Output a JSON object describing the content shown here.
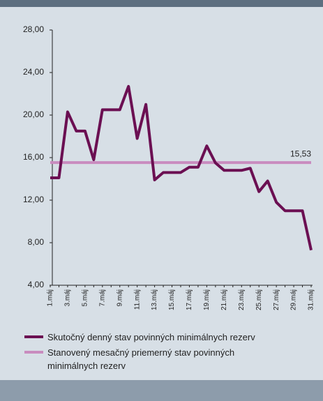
{
  "chart_data": {
    "type": "line",
    "categories": [
      "1.máj",
      null,
      "3.máj",
      null,
      "5.máj",
      null,
      "7.máj",
      null,
      "9.máj",
      null,
      "11.máj",
      null,
      "13.máj",
      null,
      "15.máj",
      null,
      "17.máj",
      null,
      "19.máj",
      null,
      "21.máj",
      null,
      "23.máj",
      null,
      "25.máj",
      null,
      "27.máj",
      null,
      "29.máj",
      null,
      "31.máj"
    ],
    "series": [
      {
        "name": "Skutočný denný stav povinných minimálnych rezerv",
        "color": "#6b0f52",
        "values": [
          14.1,
          14.1,
          20.3,
          18.5,
          18.5,
          15.8,
          20.5,
          20.5,
          20.5,
          22.7,
          17.8,
          21.0,
          13.9,
          14.6,
          14.6,
          14.6,
          15.1,
          15.1,
          17.1,
          15.5,
          14.8,
          14.8,
          14.8,
          15.0,
          12.8,
          13.8,
          11.8,
          11.0,
          11.0,
          11.0,
          7.3
        ]
      },
      {
        "name": "Stanovený mesačný priemerný stav povinných minimálnych rezerv",
        "color": "#c98cbf",
        "values": [
          15.53,
          15.53,
          15.53,
          15.53,
          15.53,
          15.53,
          15.53,
          15.53,
          15.53,
          15.53,
          15.53,
          15.53,
          15.53,
          15.53,
          15.53,
          15.53,
          15.53,
          15.53,
          15.53,
          15.53,
          15.53,
          15.53,
          15.53,
          15.53,
          15.53,
          15.53,
          15.53,
          15.53,
          15.53,
          15.53,
          15.53
        ],
        "value_labels": [
          null,
          null,
          null,
          null,
          null,
          null,
          null,
          null,
          null,
          null,
          null,
          null,
          null,
          null,
          null,
          null,
          null,
          null,
          null,
          null,
          null,
          null,
          null,
          null,
          null,
          null,
          null,
          null,
          null,
          null,
          "15,53"
        ]
      }
    ],
    "ylim": [
      4,
      28
    ],
    "yticks": [
      {
        "value": 4,
        "label": "4,00"
      },
      {
        "value": 8,
        "label": "8,00"
      },
      {
        "value": 12,
        "label": "12,00"
      },
      {
        "value": 16,
        "label": "16,00"
      },
      {
        "value": 20,
        "label": "20,00"
      },
      {
        "value": 24,
        "label": "24,00"
      },
      {
        "value": 28,
        "label": "28,00"
      }
    ],
    "legend": "bottom"
  }
}
